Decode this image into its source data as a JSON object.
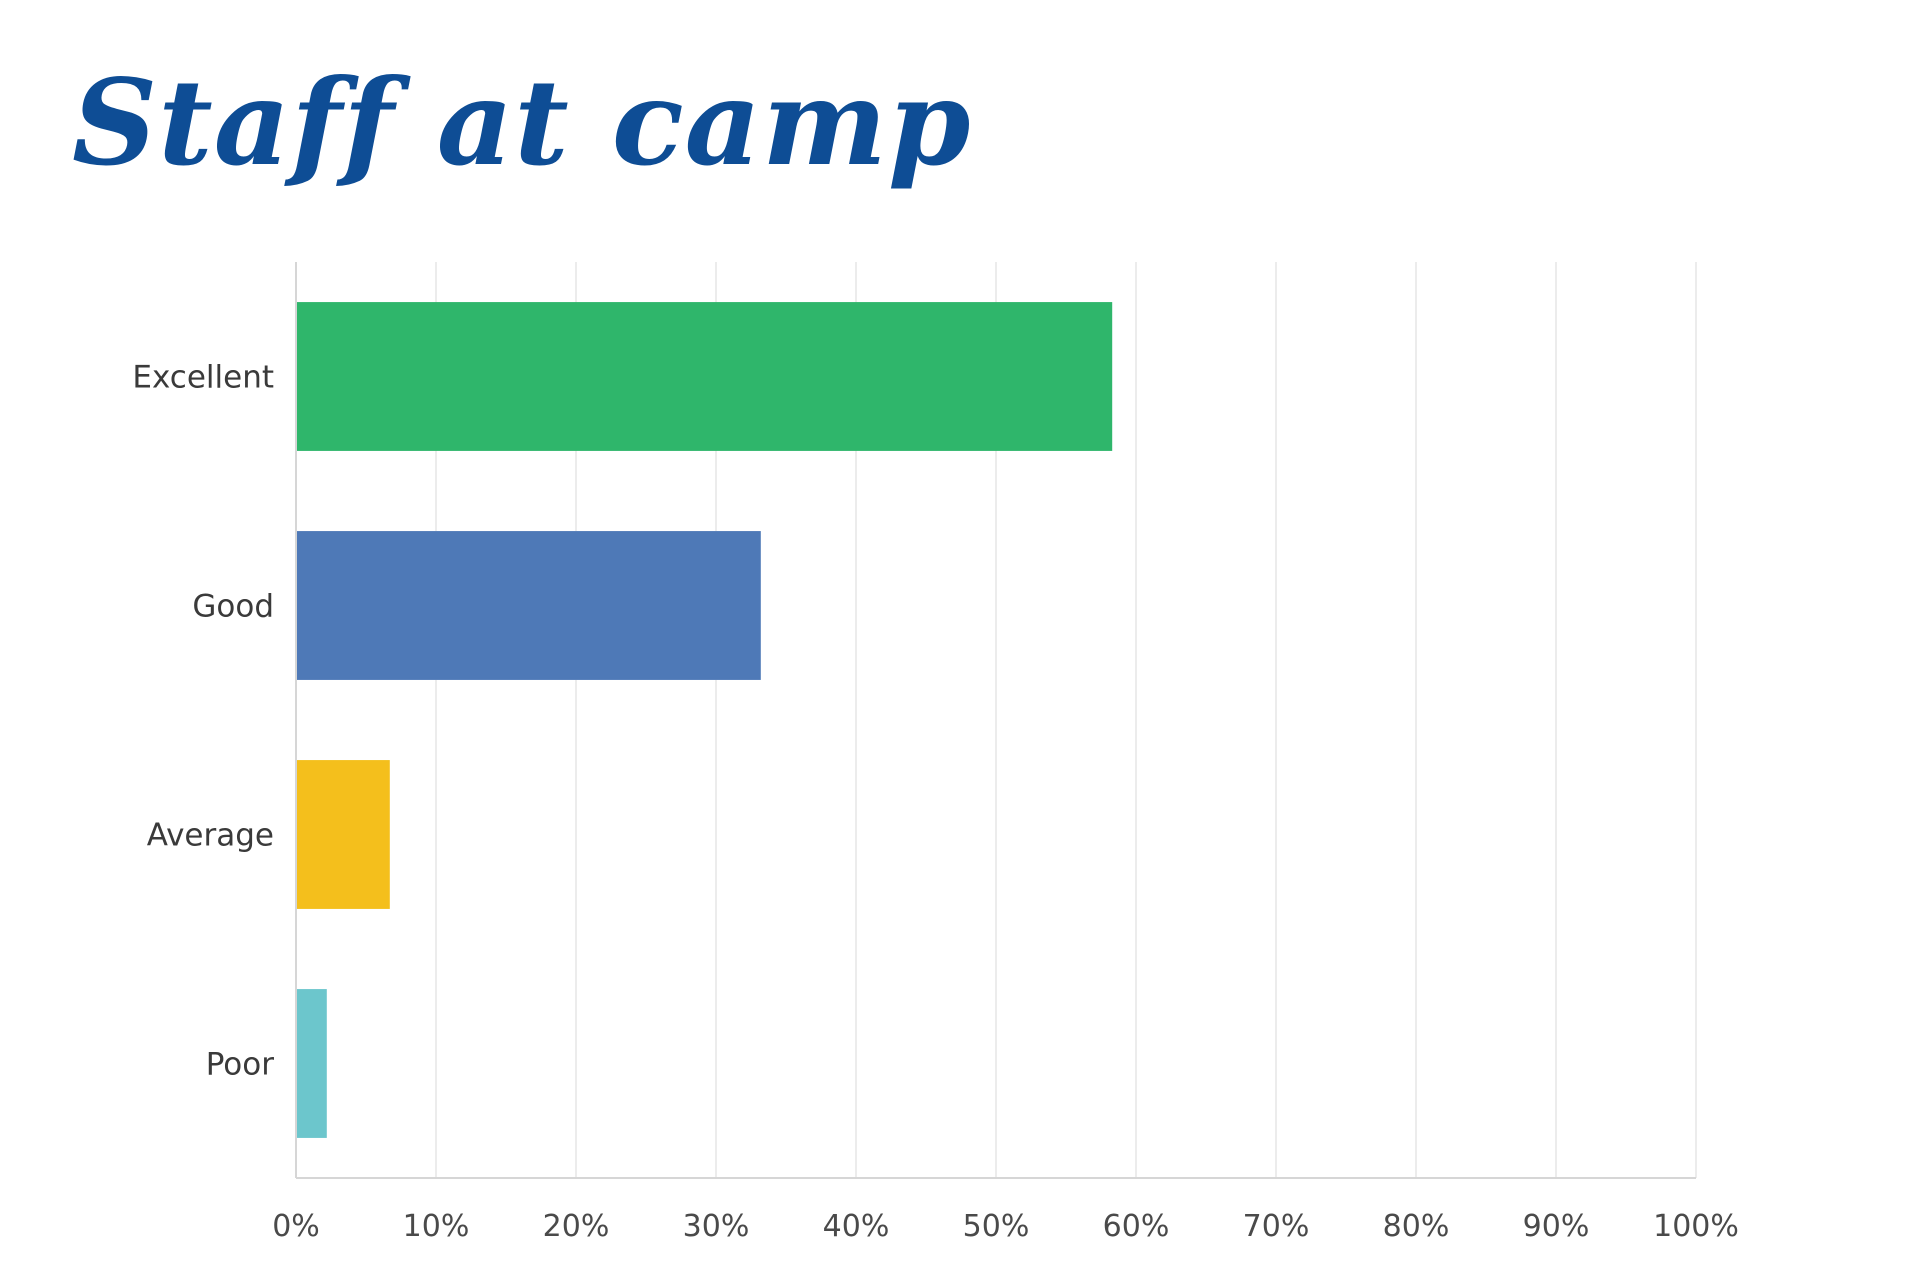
{
  "chart_data": {
    "type": "bar",
    "orientation": "horizontal",
    "title": "Staff at camp",
    "categories": [
      "Excellent",
      "Good",
      "Average",
      "Poor"
    ],
    "values": [
      58.3,
      33.2,
      6.7,
      2.2
    ],
    "unit": "%",
    "xlim": [
      0,
      100
    ],
    "xticks": [
      0,
      10,
      20,
      30,
      40,
      50,
      60,
      70,
      80,
      90,
      100
    ],
    "xtick_labels": [
      "0%",
      "10%",
      "20%",
      "30%",
      "40%",
      "50%",
      "60%",
      "70%",
      "80%",
      "90%",
      "100%"
    ],
    "grid": true,
    "legend": "none",
    "colors": [
      "#2fb66b",
      "#4e79b7",
      "#f4bf1c",
      "#6cc6cc"
    ]
  }
}
